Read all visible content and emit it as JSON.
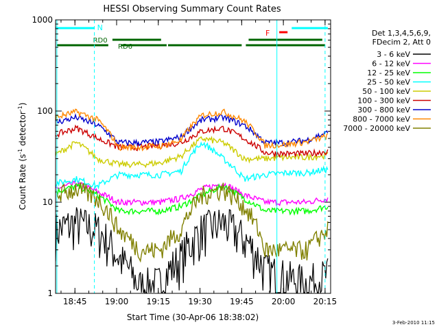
{
  "chart_data": {
    "type": "line",
    "title": "HESSI Observing Summary Count Rates",
    "xlabel": "Start Time (30-Apr-06 18:38:02)",
    "ylabel_main": "Count Rate (s",
    "ylabel_sup1": "-1",
    "ylabel_mid": " detector",
    "ylabel_sup2": "-1",
    "ylabel_end": ")",
    "yscale": "log",
    "ylim": [
      1,
      1000
    ],
    "xlim": [
      "18:38:02",
      "20:17:00"
    ],
    "x_ticks": [
      "18:45",
      "19:00",
      "19:15",
      "19:30",
      "19:45",
      "20:00",
      "20:15"
    ],
    "y_ticks": [
      "1",
      "10",
      "100",
      "1000"
    ],
    "legend_position": "right",
    "legend_header": [
      "Det 1,3,4,5,6,9,",
      "FDecim 2, Att 0"
    ],
    "footer_date": "3-Feb-2010 11:15",
    "annotations": {
      "night": {
        "label": "N",
        "color": "#00ffff",
        "start": "18:38:02",
        "end": "18:52:00"
      },
      "flare": {
        "label": "F",
        "color": "#ff0000",
        "start": "19:57:00",
        "end": "20:02:00"
      },
      "saa_rd0": {
        "label": "RD0",
        "color": "#006400"
      },
      "saa_rd6": {
        "label": "RD6",
        "color": "#006400"
      },
      "night2_start": "20:03:00",
      "night_line_color": "#00ffff",
      "dashed_times": [
        "18:52:00",
        "20:15:00"
      ],
      "solid_times": [
        "18:38:30",
        "19:57:40"
      ]
    },
    "series": [
      {
        "name": "3 - 6 keV",
        "color": "#000000",
        "values": [
          5,
          6,
          5,
          2.5,
          1.2,
          1.3,
          2.5,
          5,
          6,
          4,
          1.8,
          1.5,
          1.3,
          1.6
        ]
      },
      {
        "name": "6 - 12 keV",
        "color": "#ff00ff",
        "values": [
          14,
          16,
          13,
          10,
          10,
          10,
          11,
          14,
          16,
          12,
          10,
          10,
          10,
          11
        ]
      },
      {
        "name": "12 - 25 keV",
        "color": "#00ff00",
        "values": [
          13,
          15,
          12,
          8,
          8,
          8,
          9,
          12,
          15,
          11,
          8,
          8,
          8,
          9
        ]
      },
      {
        "name": "25 - 50 keV",
        "color": "#00ffff",
        "values": [
          16,
          18,
          15,
          20,
          20,
          20,
          22,
          45,
          30,
          18,
          20,
          21,
          21,
          23
        ]
      },
      {
        "name": "50 - 100 keV",
        "color": "#cccc00",
        "values": [
          33,
          45,
          30,
          26,
          26,
          27,
          32,
          50,
          45,
          30,
          30,
          31,
          31,
          33
        ]
      },
      {
        "name": "100 - 300 keV",
        "color": "#cc0000",
        "values": [
          55,
          65,
          50,
          40,
          40,
          42,
          45,
          60,
          65,
          50,
          35,
          34,
          34,
          36
        ]
      },
      {
        "name": "300 - 800 keV",
        "color": "#0000cc",
        "values": [
          75,
          85,
          70,
          45,
          45,
          46,
          52,
          80,
          85,
          70,
          45,
          45,
          48,
          58
        ]
      },
      {
        "name": "800 - 7000 keV",
        "color": "#ff8800",
        "values": [
          85,
          98,
          80,
          40,
          40,
          41,
          48,
          90,
          98,
          78,
          42,
          43,
          46,
          53
        ]
      },
      {
        "name": "7000 - 20000 keV",
        "color": "#808000",
        "values": [
          12,
          14,
          11,
          5,
          3,
          3,
          5,
          12,
          14,
          9,
          3,
          3,
          3,
          5
        ]
      }
    ]
  }
}
